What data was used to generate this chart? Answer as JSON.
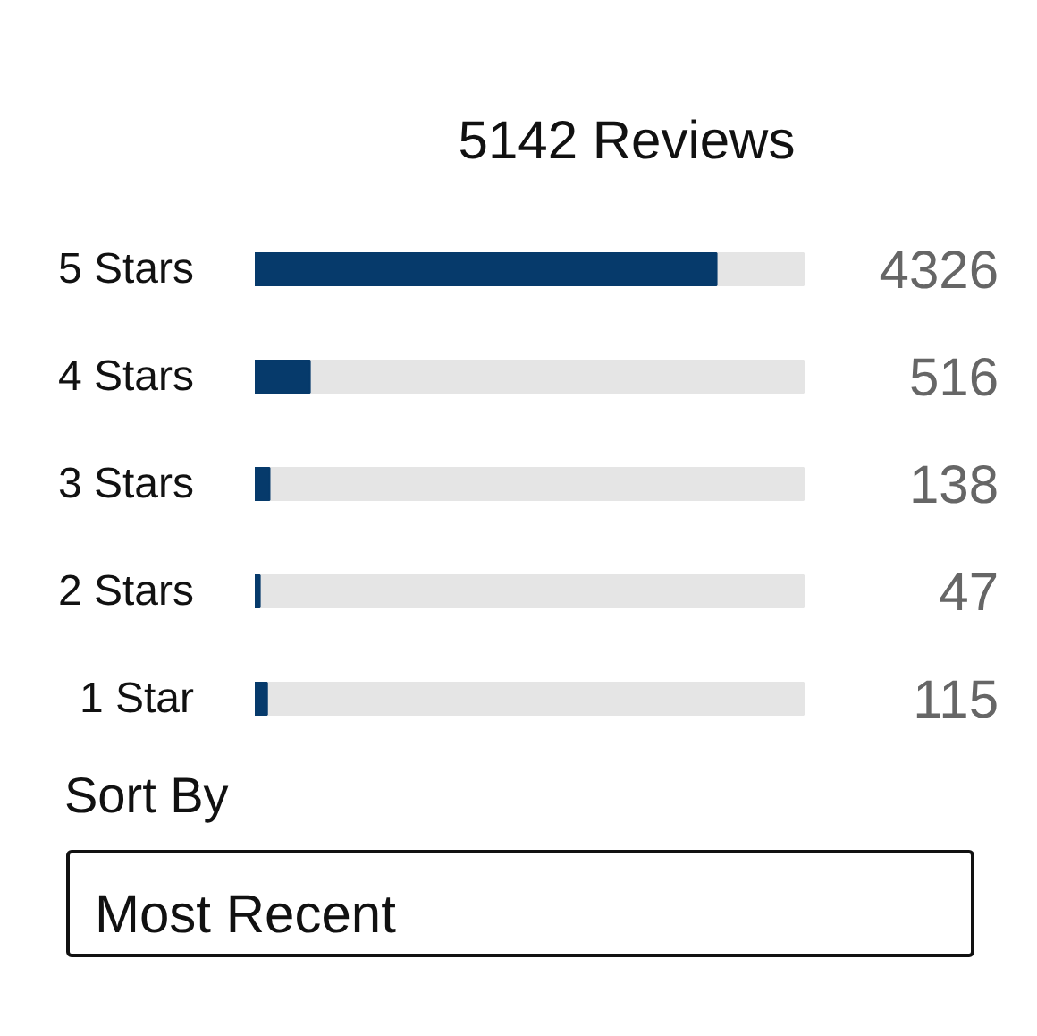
{
  "chart_data": {
    "type": "bar",
    "orientation": "horizontal",
    "title": "5142 Reviews",
    "categories": [
      "5 Stars",
      "4 Stars",
      "3 Stars",
      "2 Stars",
      "1 Star"
    ],
    "values": [
      4326,
      516,
      138,
      47,
      115
    ],
    "color": "#063a6b",
    "data_labels": true,
    "grid": false,
    "tick_labels": "y",
    "annotations": [
      "Sort By",
      "Most Recent"
    ]
  }
}
